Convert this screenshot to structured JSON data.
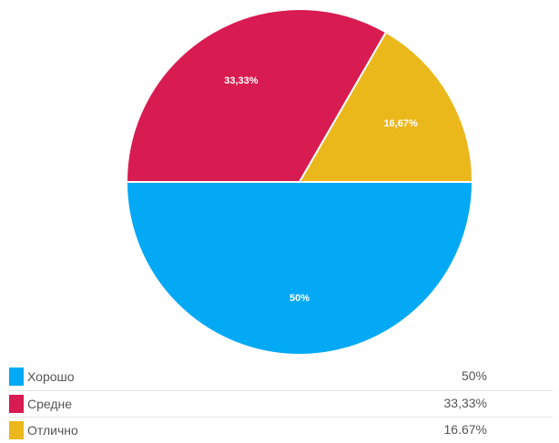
{
  "chart_data": {
    "type": "pie",
    "slices": [
      {
        "label": "Хорошо",
        "value": 50,
        "data_label": "50%",
        "legend_value": "50%",
        "color": "#03a9f4"
      },
      {
        "label": "Средне",
        "value": 33.33,
        "data_label": "33,33%",
        "legend_value": "33,33%",
        "color": "#d81b50"
      },
      {
        "label": "Отлично",
        "value": 16.67,
        "data_label": "16,67%",
        "legend_value": "16.67%",
        "color": "#ebb81c"
      }
    ],
    "legend_placement": "bottom"
  }
}
